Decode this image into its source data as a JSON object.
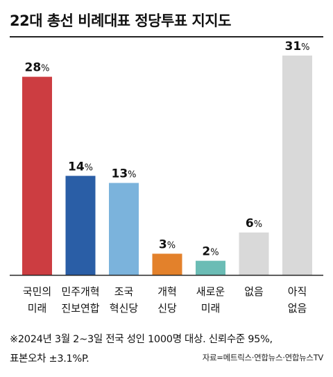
{
  "title": "22대 총선 비례대표 정당투표 지지도",
  "footnote": {
    "line1": "※2024년 3월 2~3일 전국 성인 1000명 대상. 신뢰수준 95%,",
    "line2": "표본오차 ±3.1%P."
  },
  "source": "자료=메트릭스·연합뉴스·연합뉴스TV",
  "colors": {
    "red": "#cc3d41",
    "blue": "#2a5ea6",
    "lightblue": "#7bb3dc",
    "orange": "#e3812b",
    "teal": "#6bbcb5",
    "gray": "#d9d9d9"
  },
  "chart_data": {
    "type": "bar",
    "title": "22대 총선 비례대표 정당투표 지지도",
    "unit": "%",
    "ylim": [
      0,
      31
    ],
    "grid": false,
    "categories": [
      [
        "국민의",
        "미래"
      ],
      [
        "민주개혁",
        "진보연합"
      ],
      [
        "조국",
        "혁신당"
      ],
      [
        "개혁",
        "신당"
      ],
      [
        "새로운",
        "미래"
      ],
      [
        "없음"
      ],
      [
        "아직",
        "없음"
      ]
    ],
    "values": [
      28,
      14,
      13,
      3,
      2,
      6,
      31
    ],
    "bar_colors": [
      "#cc3d41",
      "#2a5ea6",
      "#7bb3dc",
      "#e3812b",
      "#6bbcb5",
      "#d9d9d9",
      "#d9d9d9"
    ]
  }
}
